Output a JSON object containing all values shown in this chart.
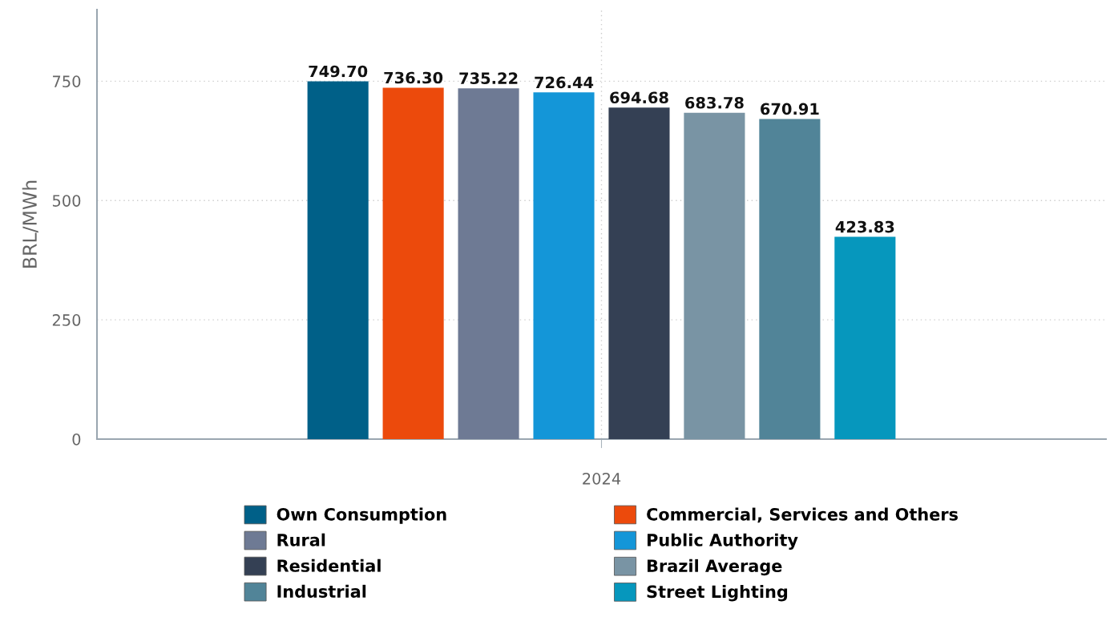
{
  "chart_data": {
    "type": "bar",
    "ylabel": "BRL/MWh",
    "categories": [
      "2024"
    ],
    "series": [
      {
        "name": "Own Consumption",
        "color": "#006088",
        "values": [
          749.7
        ],
        "value_labels": [
          "749.70"
        ]
      },
      {
        "name": "Commercial, Services and Others",
        "color": "#ec4a0c",
        "values": [
          736.3
        ],
        "value_labels": [
          "736.30"
        ]
      },
      {
        "name": "Rural",
        "color": "#6e7a94",
        "values": [
          735.22
        ],
        "value_labels": [
          "735.22"
        ]
      },
      {
        "name": "Public Authority",
        "color": "#1496d8",
        "values": [
          726.44
        ],
        "value_labels": [
          "726.44"
        ]
      },
      {
        "name": "Residential",
        "color": "#344054",
        "values": [
          694.68
        ],
        "value_labels": [
          "694.68"
        ]
      },
      {
        "name": "Brazil Average",
        "color": "#7994a4",
        "values": [
          683.78
        ],
        "value_labels": [
          "683.78"
        ]
      },
      {
        "name": "Industrial",
        "color": "#518498",
        "values": [
          670.91
        ],
        "value_labels": [
          "670.91"
        ]
      },
      {
        "name": "Street Lighting",
        "color": "#0697bd",
        "values": [
          423.83
        ],
        "value_labels": [
          "423.83"
        ]
      }
    ],
    "ylim": [
      0,
      900
    ],
    "yticks": [
      0,
      250,
      500,
      750
    ],
    "grid": true,
    "legend": "bottom"
  }
}
